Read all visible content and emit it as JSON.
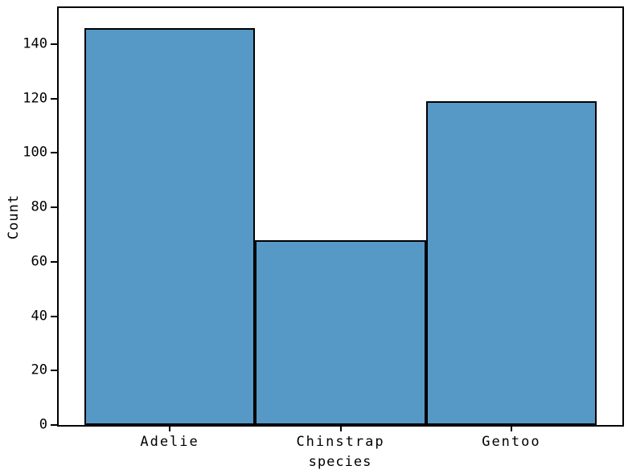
{
  "chart_data": {
    "type": "bar",
    "title": "",
    "categories": [
      "Adelie",
      "Chinstrap",
      "Gentoo"
    ],
    "values": [
      146,
      68,
      119
    ],
    "xlabel": "species",
    "ylabel": "Count",
    "yticks": [
      0,
      20,
      40,
      60,
      80,
      100,
      120,
      140
    ],
    "ylim": [
      0,
      153.3
    ],
    "bar_width": 1,
    "bar_color": "#5699C6",
    "bar_edge_color": "#000000",
    "frame": "full-box",
    "grid": false,
    "legend": "none",
    "background": "#ffffff"
  }
}
